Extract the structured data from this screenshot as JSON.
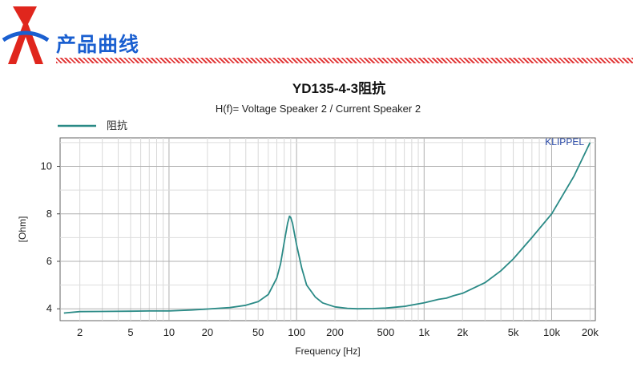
{
  "header": {
    "title": "产品曲线",
    "logo_color": "#e0261d",
    "title_color": "#1a5fd0"
  },
  "chart_data": {
    "type": "line",
    "title": "YD135-4-3阻抗",
    "subtitle": "H(f)= Voltage Speaker 2 / Current Speaker 2",
    "xlabel": "Frequency [Hz]",
    "ylabel": "[Ohm]",
    "xscale": "log",
    "xlim": [
      1.4,
      22000
    ],
    "ylim": [
      3.5,
      11.2
    ],
    "grid": true,
    "legend_position": "top-left",
    "brand_mark": "KLIPPEL",
    "x_ticks": [
      {
        "value": 2,
        "label": "2"
      },
      {
        "value": 5,
        "label": "5"
      },
      {
        "value": 10,
        "label": "10"
      },
      {
        "value": 20,
        "label": "20"
      },
      {
        "value": 50,
        "label": "50"
      },
      {
        "value": 100,
        "label": "100"
      },
      {
        "value": 200,
        "label": "200"
      },
      {
        "value": 500,
        "label": "500"
      },
      {
        "value": 1000,
        "label": "1k"
      },
      {
        "value": 2000,
        "label": "2k"
      },
      {
        "value": 5000,
        "label": "5k"
      },
      {
        "value": 10000,
        "label": "10k"
      },
      {
        "value": 20000,
        "label": "20k"
      }
    ],
    "y_ticks": [
      {
        "value": 4,
        "label": "4"
      },
      {
        "value": 6,
        "label": "6"
      },
      {
        "value": 8,
        "label": "8"
      },
      {
        "value": 10,
        "label": "10"
      }
    ],
    "series": [
      {
        "name": "阻抗",
        "color": "#2a8a86",
        "x": [
          1.5,
          2,
          3,
          5,
          7,
          10,
          15,
          20,
          30,
          40,
          50,
          60,
          70,
          75,
          80,
          85,
          88,
          90,
          93,
          96,
          100,
          110,
          120,
          140,
          160,
          200,
          250,
          300,
          400,
          500,
          700,
          1000,
          1300,
          1500,
          1700,
          2000,
          3000,
          4000,
          5000,
          7000,
          10000,
          15000,
          20000
        ],
        "values": [
          3.82,
          3.88,
          3.89,
          3.9,
          3.91,
          3.91,
          3.95,
          3.99,
          4.05,
          4.15,
          4.3,
          4.6,
          5.3,
          5.9,
          6.8,
          7.6,
          7.9,
          7.85,
          7.6,
          7.2,
          6.7,
          5.7,
          5.0,
          4.5,
          4.25,
          4.08,
          4.02,
          4.0,
          4.01,
          4.03,
          4.1,
          4.25,
          4.4,
          4.45,
          4.55,
          4.65,
          5.1,
          5.6,
          6.1,
          7.0,
          8.0,
          9.6,
          11.0
        ]
      }
    ]
  }
}
